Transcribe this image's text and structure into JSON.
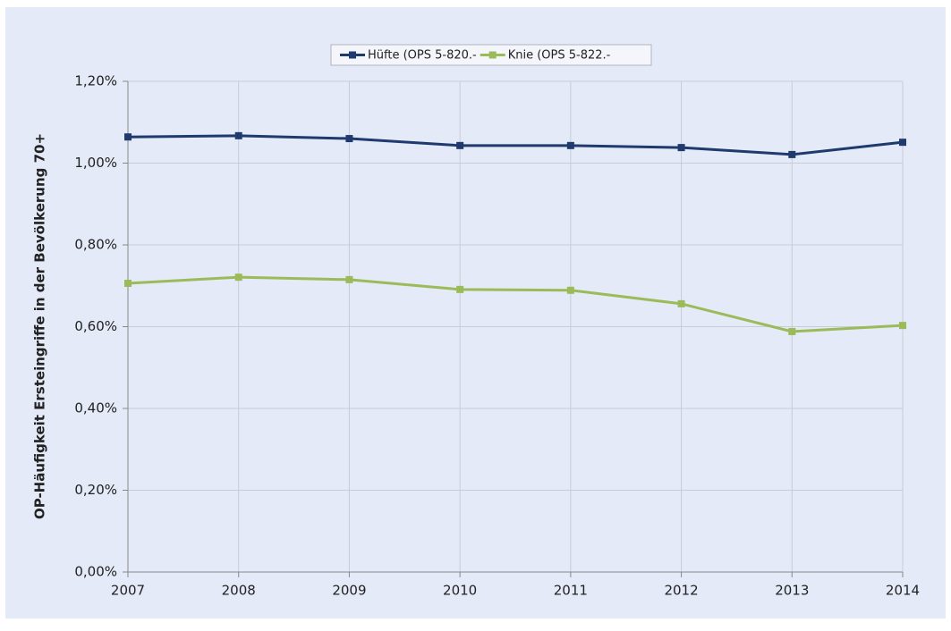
{
  "chart_data": {
    "type": "line",
    "y_axis_label": "OP-Häufigkeit Ersteingriffe in der Bevölkerung 70+",
    "categories": [
      "2007",
      "2008",
      "2009",
      "2010",
      "2011",
      "2012",
      "2013",
      "2014"
    ],
    "series": [
      {
        "name": "Hüfte (OPS 5-820.-",
        "color": "#1f3a6e",
        "values": [
          1.064,
          1.067,
          1.06,
          1.043,
          1.043,
          1.038,
          1.021,
          1.051
        ]
      },
      {
        "name": "Knie (OPS 5-822.-",
        "color": "#9bbb59",
        "values": [
          0.706,
          0.721,
          0.715,
          0.691,
          0.689,
          0.656,
          0.588,
          0.603
        ]
      }
    ],
    "ylim": [
      0,
      1.2
    ],
    "yticks": [
      {
        "value": 0,
        "label": "0,00%"
      },
      {
        "value": 0.2,
        "label": "0,20%"
      },
      {
        "value": 0.4,
        "label": "0,40%"
      },
      {
        "value": 0.6,
        "label": "0,60%"
      },
      {
        "value": 0.8,
        "label": "0,80%"
      },
      {
        "value": 1.0,
        "label": "1,00%"
      },
      {
        "value": 1.2,
        "label": "1,20%"
      }
    ],
    "grid": true,
    "legend": "top"
  }
}
